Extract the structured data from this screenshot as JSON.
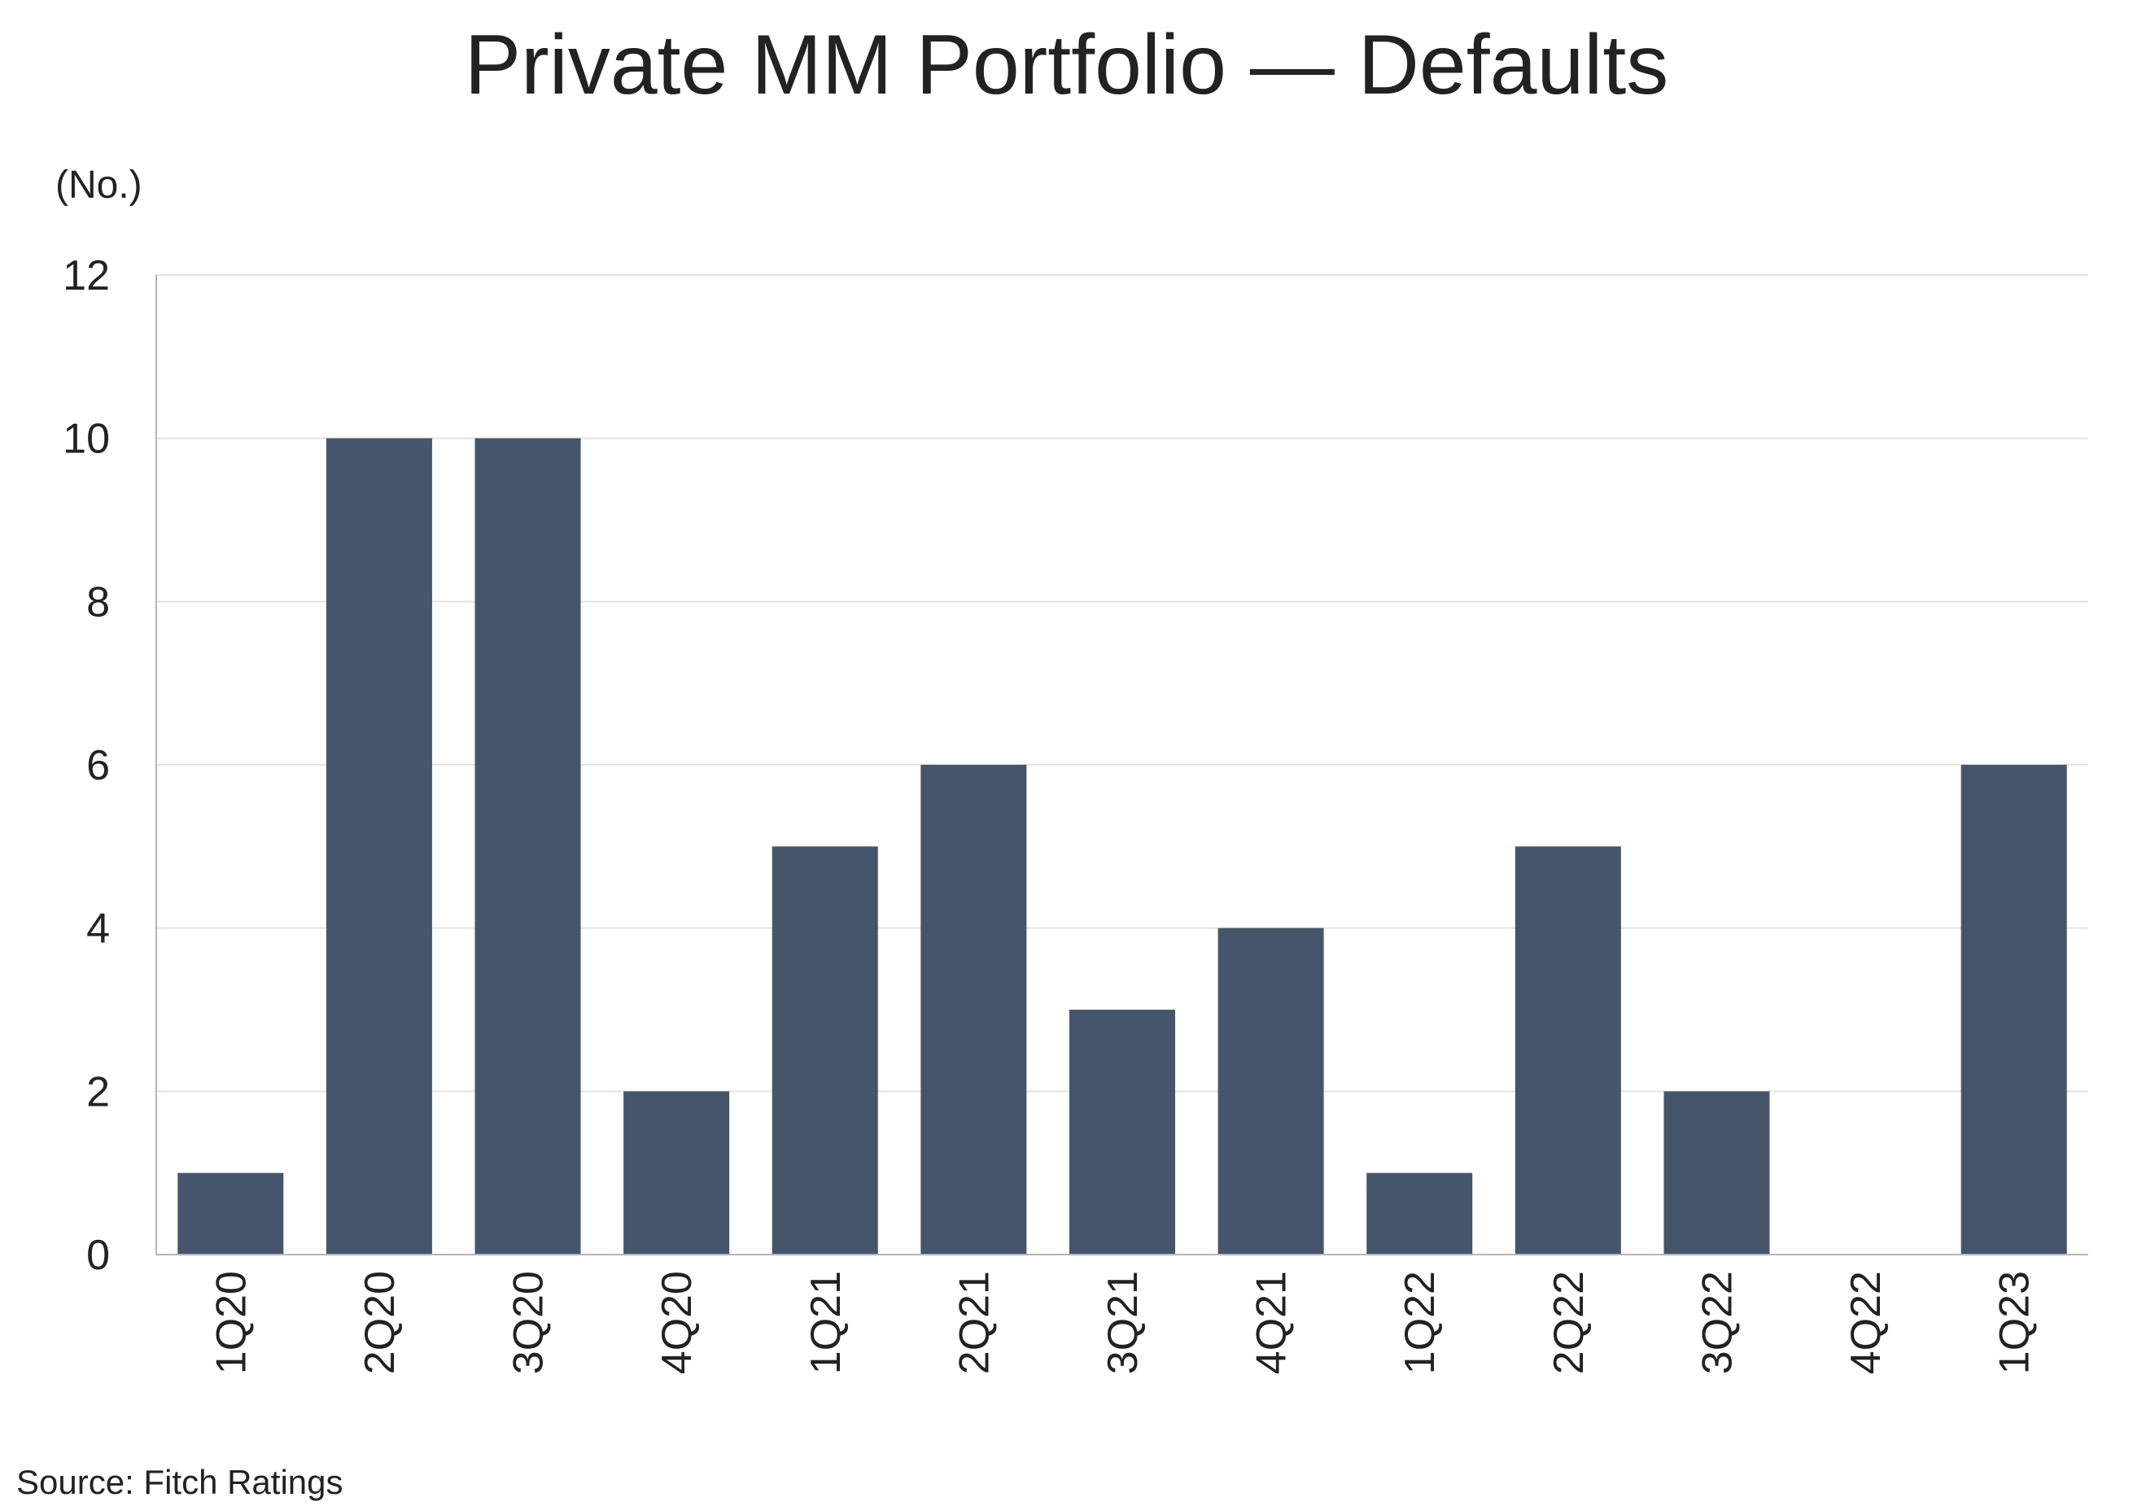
{
  "chart_data": {
    "type": "bar",
    "title": "Private MM Portfolio — Defaults",
    "ylabel": "(No.)",
    "xlabel": "",
    "categories": [
      "1Q20",
      "2Q20",
      "3Q20",
      "4Q20",
      "1Q21",
      "2Q21",
      "3Q21",
      "4Q21",
      "1Q22",
      "2Q22",
      "3Q22",
      "4Q22",
      "1Q23"
    ],
    "values": [
      1,
      10,
      10,
      2,
      5,
      6,
      3,
      4,
      1,
      5,
      2,
      0,
      6
    ],
    "ylim": [
      0,
      12
    ],
    "yticks": [
      0,
      2,
      4,
      6,
      8,
      10,
      12
    ],
    "grid": true,
    "bar_color": "#45556b",
    "grid_color": "#e3e3e3",
    "axis_color": "#b5b5b5"
  },
  "footer": {
    "source": "Source: Fitch Ratings"
  }
}
